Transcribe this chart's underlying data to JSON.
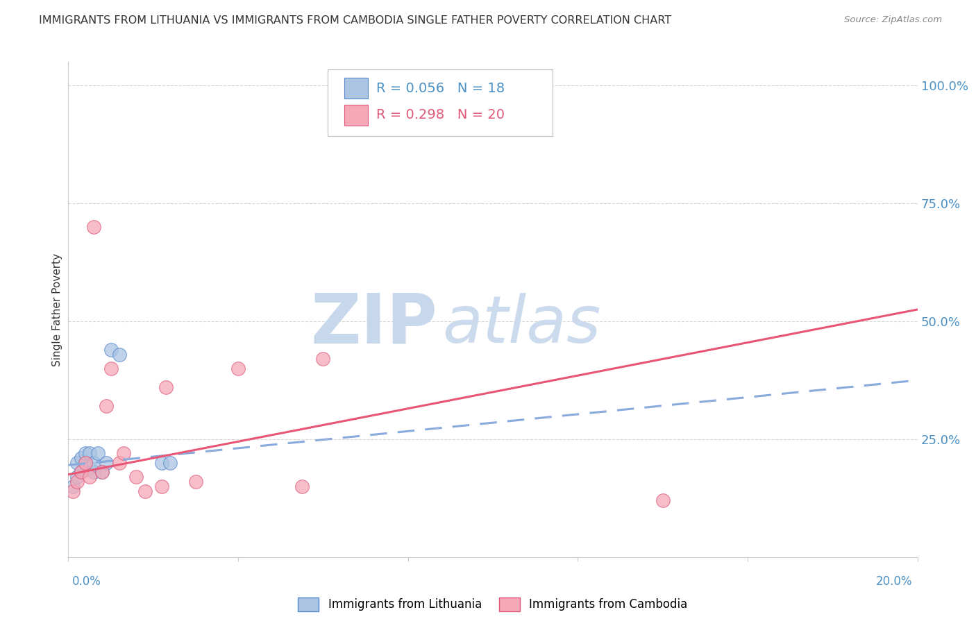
{
  "title": "IMMIGRANTS FROM LITHUANIA VS IMMIGRANTS FROM CAMBODIA SINGLE FATHER POVERTY CORRELATION CHART",
  "source": "Source: ZipAtlas.com",
  "ylabel": "Single Father Poverty",
  "ytick_labels": [
    "100.0%",
    "75.0%",
    "50.0%",
    "25.0%"
  ],
  "ytick_values": [
    1.0,
    0.75,
    0.5,
    0.25
  ],
  "xlim": [
    0.0,
    0.2
  ],
  "ylim": [
    0.0,
    1.05
  ],
  "legend_label1": "Immigrants from Lithuania",
  "legend_label2": "Immigrants from Cambodia",
  "R1": "0.056",
  "N1": "18",
  "R2": "0.298",
  "N2": "20",
  "color_blue": "#aac4e2",
  "color_pink": "#f5a8b8",
  "color_blue_dark": "#5588cc",
  "color_pink_dark": "#e05878",
  "color_line_blue": "#88aadd",
  "color_line_pink": "#e85575",
  "watermark_zip_color": "#c5d8ee",
  "watermark_atlas_color": "#c5d8ee",
  "grid_color": "#d5d5d5",
  "background_color": "#ffffff",
  "title_color": "#333333",
  "axis_color": "#4a90c4",
  "blue_x": [
    0.001,
    0.002,
    0.002,
    0.003,
    0.003,
    0.004,
    0.004,
    0.005,
    0.005,
    0.006,
    0.006,
    0.007,
    0.008,
    0.009,
    0.01,
    0.012,
    0.022,
    0.024
  ],
  "blue_y": [
    0.15,
    0.17,
    0.2,
    0.18,
    0.21,
    0.2,
    0.22,
    0.19,
    0.22,
    0.18,
    0.2,
    0.22,
    0.18,
    0.2,
    0.44,
    0.43,
    0.2,
    0.2
  ],
  "pink_x": [
    0.001,
    0.002,
    0.003,
    0.004,
    0.005,
    0.006,
    0.008,
    0.009,
    0.01,
    0.012,
    0.013,
    0.016,
    0.018,
    0.022,
    0.03,
    0.04,
    0.055,
    0.06,
    0.14,
    0.023
  ],
  "pink_y": [
    0.14,
    0.16,
    0.18,
    0.2,
    0.17,
    0.7,
    0.18,
    0.32,
    0.4,
    0.2,
    0.22,
    0.17,
    0.14,
    0.15,
    0.16,
    0.4,
    0.15,
    0.42,
    0.12,
    0.36
  ]
}
